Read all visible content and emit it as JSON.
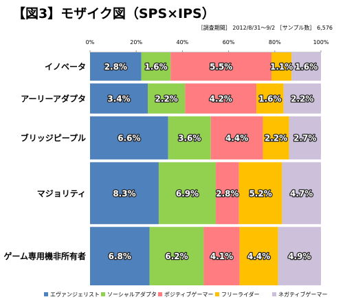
{
  "chart_data": {
    "type": "bar",
    "subtype": "mosaic",
    "title": "【図3】モザイク図（SPS×IPS）",
    "subtitle": "［調査期間］ 2012/8/31～9/2 ［サンプル数］ 6,576",
    "xlim": [
      0,
      100
    ],
    "x_ticks": [
      "0%",
      "20%",
      "40%",
      "60%",
      "80%",
      "100%"
    ],
    "categories": [
      "イノベータ",
      "アーリーアダプタ",
      "ブリッジピープル",
      "マジョリティ",
      "ゲーム専用機非所有者"
    ],
    "row_totals": [
      12.8,
      13.6,
      19.5,
      28.0,
      26.4
    ],
    "legend_position": "bottom",
    "series": [
      {
        "name": "エヴァンジェリスト",
        "color": "#4f81bd",
        "values": [
          2.8,
          3.4,
          6.6,
          8.3,
          6.8
        ],
        "labels": [
          "2.8%",
          "3.4%",
          "6.6%",
          "8.3%",
          "6.8%"
        ]
      },
      {
        "name": "ソーシャルアダプタ",
        "color": "#92d050",
        "values": [
          1.6,
          2.2,
          3.6,
          6.9,
          6.2
        ],
        "labels": [
          "1.6%",
          "2.2%",
          "3.6%",
          "6.9%",
          "6.2%"
        ]
      },
      {
        "name": "ポジティブゲーマー",
        "color": "#ff7c80",
        "values": [
          5.5,
          4.2,
          4.4,
          2.8,
          4.1
        ],
        "labels": [
          "5.5%",
          "4.2%",
          "4.4%",
          "2.8%",
          "4.1%"
        ]
      },
      {
        "name": "フリーライダー",
        "color": "#ffc000",
        "values": [
          1.1,
          1.6,
          2.2,
          5.2,
          4.4
        ],
        "labels": [
          "1.1%",
          "1.6%",
          "2.2%",
          "5.2%",
          "4.4%"
        ]
      },
      {
        "name": "ネガティブゲーマー",
        "color": "#ccc0da",
        "values": [
          1.6,
          2.2,
          2.7,
          4.7,
          4.9
        ],
        "labels": [
          "1.6%",
          "2.2%",
          "2.7%",
          "4.7%",
          "4.9%"
        ]
      }
    ]
  }
}
